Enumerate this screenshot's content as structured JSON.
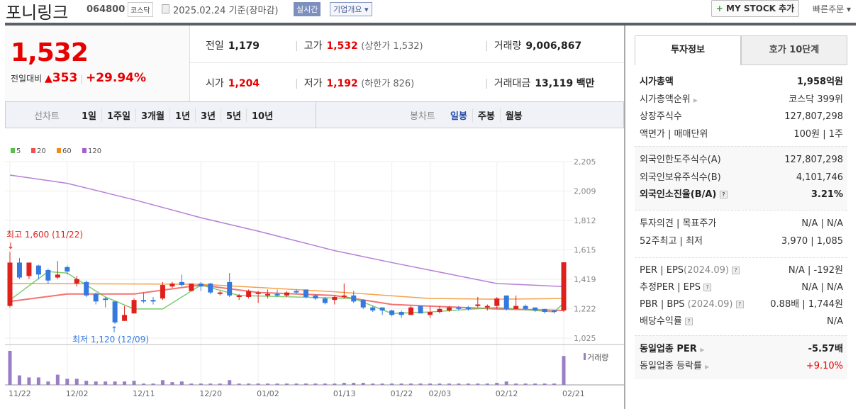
{
  "header": {
    "name": "포니링크",
    "code": "064800",
    "market": "코스닥",
    "date": "2025.02.24 기준(장마감)",
    "realtime": "실시간",
    "company_info": "기업개요 ▾",
    "my_stock_plus": "+",
    "my_stock": " MY STOCK 추가",
    "quick_order": "빠른주문 ▾"
  },
  "price": {
    "current": "1,532",
    "change_label": "전일대비",
    "arrow": "▲",
    "change": "353",
    "sep": "|",
    "pct": "+29.94%"
  },
  "info": {
    "prev": {
      "label": "전일",
      "value": "1,179"
    },
    "high": {
      "label": "고가",
      "value": "1,532",
      "extra": "(상한가 1,532)"
    },
    "volume": {
      "label": "거래량",
      "value": "9,006,867"
    },
    "open": {
      "label": "시가",
      "value": "1,204"
    },
    "low": {
      "label": "저가",
      "value": "1,192",
      "extra": "(하한가 826)"
    },
    "amount": {
      "label": "거래대금",
      "value": "13,119",
      "unit": "백만"
    }
  },
  "chart_tabs": {
    "line_label": "선차트",
    "line": [
      "1일",
      "1주일",
      "3개월",
      "1년",
      "3년",
      "5년",
      "10년"
    ],
    "candle_label": "봉차트",
    "candle": [
      "일봉",
      "주봉",
      "월봉"
    ],
    "active_candle": 0
  },
  "colors": {
    "up": "#e0201b",
    "down": "#3478e0",
    "ma5": "#5cbf4a",
    "ma20": "#f05050",
    "ma60": "#f28a1c",
    "ma120": "#a45fd0",
    "volume": "#9a7fc4"
  },
  "chart_data": {
    "type": "candlestick",
    "legend": [
      "5",
      "20",
      "60",
      "120"
    ],
    "y_ticks": [
      "2,205",
      "2,009",
      "1,812",
      "1,615",
      "1,419",
      "1,222",
      "1,025"
    ],
    "ylim": [
      1025,
      2205
    ],
    "x_labels": [
      {
        "i": 0,
        "t": "11/22"
      },
      {
        "i": 6,
        "t": "12/02"
      },
      {
        "i": 13,
        "t": "12/11"
      },
      {
        "i": 20,
        "t": "12/20"
      },
      {
        "i": 26,
        "t": "01/02"
      },
      {
        "i": 34,
        "t": "01/13"
      },
      {
        "i": 40,
        "t": "01/22"
      },
      {
        "i": 44,
        "t": "02/03"
      },
      {
        "i": 51,
        "t": "02/12"
      },
      {
        "i": 58,
        "t": "02/21"
      }
    ],
    "ohlc": [
      [
        1240,
        1600,
        1230,
        1530
      ],
      [
        1530,
        1560,
        1420,
        1430
      ],
      [
        1440,
        1530,
        1420,
        1530
      ],
      [
        1510,
        1515,
        1420,
        1450
      ],
      [
        1480,
        1490,
        1390,
        1410
      ],
      [
        1430,
        1540,
        1420,
        1450
      ],
      [
        1500,
        1510,
        1450,
        1470
      ],
      [
        1390,
        1440,
        1370,
        1420
      ],
      [
        1400,
        1410,
        1300,
        1310
      ],
      [
        1320,
        1330,
        1250,
        1270
      ],
      [
        1290,
        1300,
        1230,
        1280
      ],
      [
        1270,
        1270,
        1120,
        1130
      ],
      [
        1140,
        1240,
        1140,
        1180
      ],
      [
        1190,
        1290,
        1190,
        1280
      ],
      [
        1280,
        1330,
        1260,
        1270
      ],
      [
        1280,
        1300,
        1250,
        1270
      ],
      [
        1290,
        1400,
        1280,
        1380
      ],
      [
        1370,
        1400,
        1360,
        1390
      ],
      [
        1400,
        1450,
        1370,
        1380
      ],
      [
        1340,
        1390,
        1340,
        1390
      ],
      [
        1390,
        1400,
        1340,
        1370
      ],
      [
        1390,
        1395,
        1320,
        1330
      ],
      [
        1320,
        1340,
        1310,
        1330
      ],
      [
        1400,
        1460,
        1300,
        1310
      ],
      [
        1300,
        1320,
        1280,
        1310
      ],
      [
        1300,
        1350,
        1290,
        1340
      ],
      [
        1320,
        1340,
        1260,
        1330
      ],
      [
        1310,
        1350,
        1290,
        1320
      ],
      [
        1320,
        1350,
        1300,
        1310
      ],
      [
        1310,
        1340,
        1300,
        1330
      ],
      [
        1340,
        1350,
        1320,
        1330
      ],
      [
        1350,
        1350,
        1290,
        1300
      ],
      [
        1310,
        1320,
        1280,
        1290
      ],
      [
        1290,
        1300,
        1250,
        1260
      ],
      [
        1280,
        1310,
        1250,
        1300
      ],
      [
        1300,
        1390,
        1290,
        1310
      ],
      [
        1310,
        1340,
        1260,
        1270
      ],
      [
        1280,
        1285,
        1220,
        1230
      ],
      [
        1230,
        1240,
        1200,
        1210
      ],
      [
        1230,
        1230,
        1180,
        1210
      ],
      [
        1210,
        1215,
        1170,
        1180
      ],
      [
        1200,
        1210,
        1160,
        1180
      ],
      [
        1180,
        1240,
        1180,
        1230
      ],
      [
        1240,
        1240,
        1190,
        1190
      ],
      [
        1180,
        1240,
        1160,
        1200
      ],
      [
        1200,
        1240,
        1190,
        1220
      ],
      [
        1210,
        1240,
        1200,
        1230
      ],
      [
        1230,
        1240,
        1210,
        1220
      ],
      [
        1230,
        1240,
        1210,
        1220
      ],
      [
        1240,
        1300,
        1230,
        1250
      ],
      [
        1230,
        1250,
        1210,
        1240
      ],
      [
        1240,
        1300,
        1220,
        1290
      ],
      [
        1310,
        1310,
        1210,
        1220
      ],
      [
        1220,
        1310,
        1220,
        1240
      ],
      [
        1240,
        1250,
        1210,
        1220
      ],
      [
        1230,
        1230,
        1200,
        1210
      ],
      [
        1220,
        1220,
        1190,
        1200
      ],
      [
        1210,
        1215,
        1190,
        1200
      ],
      [
        1210,
        1532,
        1200,
        1532
      ]
    ],
    "volume_rel": [
      1.0,
      0.28,
      0.22,
      0.22,
      0.1,
      0.3,
      0.18,
      0.18,
      0.12,
      0.1,
      0.1,
      0.1,
      0.1,
      0.12,
      0.04,
      0.04,
      0.14,
      0.08,
      0.1,
      0.04,
      0.04,
      0.04,
      0.04,
      0.14,
      0.04,
      0.04,
      0.04,
      0.04,
      0.04,
      0.04,
      0.04,
      0.04,
      0.04,
      0.04,
      0.04,
      0.06,
      0.06,
      0.06,
      0.04,
      0.04,
      0.04,
      0.04,
      0.04,
      0.04,
      0.04,
      0.04,
      0.04,
      0.04,
      0.04,
      0.04,
      0.04,
      0.06,
      0.1,
      0.04,
      0.04,
      0.04,
      0.04,
      0.04,
      0.85
    ],
    "ma5": [
      [
        0,
        1280
      ],
      [
        4,
        1470
      ],
      [
        6,
        1460
      ],
      [
        10,
        1300
      ],
      [
        13,
        1220
      ],
      [
        16,
        1220
      ],
      [
        20,
        1380
      ],
      [
        24,
        1310
      ],
      [
        30,
        1300
      ],
      [
        36,
        1290
      ],
      [
        40,
        1190
      ],
      [
        44,
        1200
      ],
      [
        51,
        1230
      ],
      [
        57,
        1200
      ],
      [
        58,
        1260
      ]
    ],
    "ma20": [
      [
        0,
        1270
      ],
      [
        6,
        1320
      ],
      [
        13,
        1320
      ],
      [
        20,
        1380
      ],
      [
        26,
        1330
      ],
      [
        34,
        1310
      ],
      [
        40,
        1250
      ],
      [
        51,
        1220
      ],
      [
        58,
        1210
      ]
    ],
    "ma60": [
      [
        0,
        1390
      ],
      [
        20,
        1385
      ],
      [
        34,
        1335
      ],
      [
        44,
        1290
      ],
      [
        51,
        1285
      ],
      [
        58,
        1290
      ]
    ],
    "ma120": [
      [
        0,
        2115
      ],
      [
        6,
        2060
      ],
      [
        13,
        1950
      ],
      [
        20,
        1830
      ],
      [
        26,
        1740
      ],
      [
        34,
        1610
      ],
      [
        40,
        1530
      ],
      [
        51,
        1390
      ],
      [
        58,
        1370
      ]
    ],
    "annotations": {
      "high": "최고 1,600 (11/22)",
      "low": "최저 1,120 (12/09)"
    },
    "volume_label": "거래량"
  },
  "invest": {
    "tabs": [
      "투자정보",
      "호가 10단계"
    ],
    "rows1": [
      {
        "k": "시가총액",
        "v": "1,958억원"
      },
      {
        "k": "시가총액순위",
        "v": "코스닥 399위"
      },
      {
        "k": "상장주식수",
        "v": "127,807,298"
      },
      {
        "k": "액면가 | 매매단위",
        "v": "100원 | 1주"
      }
    ],
    "rows2": [
      {
        "k": "외국인한도주식수(A)",
        "v": "127,807,298"
      },
      {
        "k": "외국인보유주식수(B)",
        "v": "4,101,746"
      },
      {
        "k": "외국인소진율(B/A)",
        "v": "3.21%"
      }
    ],
    "rows3": [
      {
        "k": "투자의견 | 목표주가",
        "v": "N/A | N/A"
      },
      {
        "k": "52주최고 | 최저",
        "v": "3,970 | 1,085"
      }
    ],
    "rows4": [
      {
        "k": "PER | EPS",
        "k2": "(2024.09)",
        "v": "N/A | -192원"
      },
      {
        "k": "추정PER | EPS",
        "v": "N/A | N/A"
      },
      {
        "k": "PBR | BPS ",
        "k2": "(2024.09)",
        "v": "0.88배 | 1,744원"
      },
      {
        "k": "배당수익률",
        "v": "N/A"
      }
    ],
    "rows5": [
      {
        "k": "동일업종 PER",
        "v": "-5.57배"
      },
      {
        "k": "동일업종 등락률",
        "v": "+9.10%"
      }
    ]
  }
}
